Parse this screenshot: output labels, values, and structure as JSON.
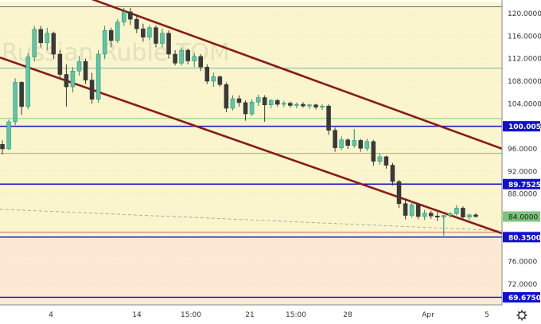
{
  "watermark": "Russian Ruble TOM",
  "chart_data": {
    "type": "candlestick",
    "ylim": [
      68,
      122
    ],
    "yticks": [
      120,
      116,
      112,
      108,
      104,
      100,
      96,
      92,
      88,
      84,
      80,
      76,
      72
    ],
    "ytick_labels": [
      "120.0000",
      "116.0000",
      "112.0000",
      "108.0000",
      "104.0000",
      "100.0000",
      "96.0000",
      "92.0000",
      "88.0000",
      "84.0000",
      "80.0000",
      "76.0000",
      "72.0000"
    ],
    "xticks": [
      "4",
      "14",
      "15:00",
      "21",
      "15:00",
      "28",
      "Apr",
      "5"
    ],
    "levels": [
      {
        "value": 100.005,
        "label": "100.0050",
        "color": "#1010d0"
      },
      {
        "value": 89.7525,
        "label": "89.7525",
        "color": "#1010d0"
      },
      {
        "value": 80.35,
        "label": "80.3500",
        "color": "#1010d0"
      },
      {
        "value": 69.675,
        "label": "69.6750",
        "color": "#1010d0"
      }
    ],
    "current": {
      "value": 84.0,
      "label": "84.0000",
      "color": "#7cc47c"
    },
    "zones": [
      {
        "from": 80.35,
        "to": 122,
        "color": "#faf5cc"
      },
      {
        "from": 68,
        "to": 80.35,
        "color": "#fde9d3"
      }
    ],
    "channel": [
      {
        "from": [
          0,
          128.5
        ],
        "to": [
          680,
          93.5
        ],
        "color": "#8b1a1a"
      },
      {
        "from": [
          0,
          112.2
        ],
        "to": [
          680,
          78.6
        ],
        "color": "#8b1a1a"
      }
    ],
    "guides": [
      {
        "value": 121.2,
        "color": "#707070"
      },
      {
        "value": 110.3,
        "color": "#5fb0b8"
      },
      {
        "value": 101.4,
        "color": "#88cc88"
      },
      {
        "value": 95.2,
        "color": "#66bb66"
      },
      {
        "value": 81.2,
        "color": "#cc5555"
      }
    ],
    "candles": [
      [
        96.8,
        97.5,
        95.0,
        96.0
      ],
      [
        96.0,
        101.2,
        95.8,
        100.8
      ],
      [
        100.8,
        108.5,
        100.2,
        107.8
      ],
      [
        107.8,
        108.0,
        102.0,
        103.5
      ],
      [
        103.5,
        113.0,
        103.0,
        112.3
      ],
      [
        112.3,
        117.8,
        111.5,
        117.2
      ],
      [
        117.2,
        117.8,
        114.0,
        114.8
      ],
      [
        114.8,
        117.5,
        113.5,
        116.5
      ],
      [
        116.5,
        116.8,
        112.0,
        112.8
      ],
      [
        112.8,
        113.5,
        108.5,
        109.2
      ],
      [
        109.2,
        111.0,
        103.5,
        107.0
      ],
      [
        107.0,
        110.5,
        106.0,
        109.8
      ],
      [
        109.8,
        112.5,
        109.0,
        111.5
      ],
      [
        111.5,
        112.0,
        107.5,
        108.2
      ],
      [
        108.2,
        109.5,
        104.0,
        104.8
      ],
      [
        104.8,
        113.5,
        104.2,
        112.8
      ],
      [
        112.8,
        117.8,
        112.0,
        117.0
      ],
      [
        117.0,
        117.5,
        114.0,
        115.2
      ],
      [
        115.2,
        119.0,
        114.8,
        118.5
      ],
      [
        118.5,
        121.0,
        117.8,
        120.3
      ],
      [
        120.3,
        121.0,
        118.0,
        119.0
      ],
      [
        119.0,
        119.8,
        116.5,
        117.3
      ],
      [
        117.3,
        118.2,
        115.0,
        115.8
      ],
      [
        115.8,
        118.0,
        115.2,
        117.5
      ],
      [
        117.5,
        117.9,
        114.0,
        114.7
      ],
      [
        114.7,
        117.3,
        114.0,
        116.5
      ],
      [
        116.5,
        117.0,
        112.0,
        112.8
      ],
      [
        112.8,
        113.5,
        110.8,
        111.2
      ],
      [
        111.2,
        114.0,
        110.8,
        113.5
      ],
      [
        113.5,
        113.8,
        111.0,
        111.6
      ],
      [
        111.6,
        113.0,
        110.5,
        112.4
      ],
      [
        112.4,
        112.8,
        109.8,
        110.5
      ],
      [
        110.5,
        111.0,
        107.5,
        108.0
      ],
      [
        108.0,
        109.5,
        107.0,
        108.8
      ],
      [
        108.8,
        109.0,
        107.0,
        107.4
      ],
      [
        107.4,
        107.8,
        102.5,
        103.2
      ],
      [
        103.2,
        105.5,
        102.8,
        104.9
      ],
      [
        104.9,
        105.5,
        103.5,
        104.2
      ],
      [
        104.2,
        104.6,
        101.0,
        102.2
      ],
      [
        102.2,
        104.8,
        101.8,
        104.3
      ],
      [
        104.3,
        105.6,
        103.6,
        105.1
      ],
      [
        105.1,
        105.5,
        100.8,
        103.8
      ],
      [
        103.8,
        104.8,
        103.2,
        104.6
      ],
      [
        104.6,
        104.8,
        103.5,
        103.9
      ],
      [
        103.9,
        104.5,
        103.4,
        104.1
      ],
      [
        104.1,
        104.4,
        103.3,
        103.7
      ],
      [
        103.7,
        104.2,
        103.2,
        103.9
      ],
      [
        103.9,
        104.3,
        103.3,
        103.6
      ],
      [
        103.6,
        104.0,
        103.1,
        103.8
      ],
      [
        103.8,
        104.0,
        103.0,
        103.4
      ],
      [
        103.4,
        103.9,
        102.9,
        103.6
      ],
      [
        103.6,
        103.9,
        98.5,
        99.3
      ],
      [
        99.3,
        99.8,
        95.5,
        96.2
      ],
      [
        96.2,
        98.2,
        95.8,
        97.6
      ],
      [
        97.6,
        97.9,
        96.0,
        96.6
      ],
      [
        96.6,
        99.5,
        96.2,
        97.5
      ],
      [
        97.5,
        97.8,
        95.5,
        96.1
      ],
      [
        96.1,
        97.8,
        95.6,
        97.3
      ],
      [
        97.3,
        97.6,
        93.0,
        93.8
      ],
      [
        93.8,
        95.2,
        93.2,
        94.6
      ],
      [
        94.6,
        94.8,
        92.5,
        93.1
      ],
      [
        93.1,
        93.5,
        89.5,
        90.2
      ],
      [
        90.2,
        90.5,
        85.5,
        86.3
      ],
      [
        86.3,
        87.0,
        83.5,
        84.2
      ],
      [
        84.2,
        86.8,
        83.8,
        86.1
      ],
      [
        86.1,
        86.3,
        83.5,
        84.0
      ],
      [
        84.0,
        85.2,
        83.4,
        84.6
      ],
      [
        84.6,
        85.0,
        83.6,
        84.1
      ],
      [
        84.1,
        84.8,
        83.2,
        83.9
      ],
      [
        83.9,
        84.3,
        80.6,
        84.2
      ],
      [
        84.2,
        84.8,
        83.8,
        84.5
      ],
      [
        84.5,
        86.0,
        84.2,
        85.5
      ],
      [
        85.5,
        85.8,
        83.6,
        83.9
      ],
      [
        83.9,
        84.5,
        83.4,
        84.3
      ],
      [
        84.3,
        84.6,
        83.8,
        84.0
      ]
    ]
  }
}
